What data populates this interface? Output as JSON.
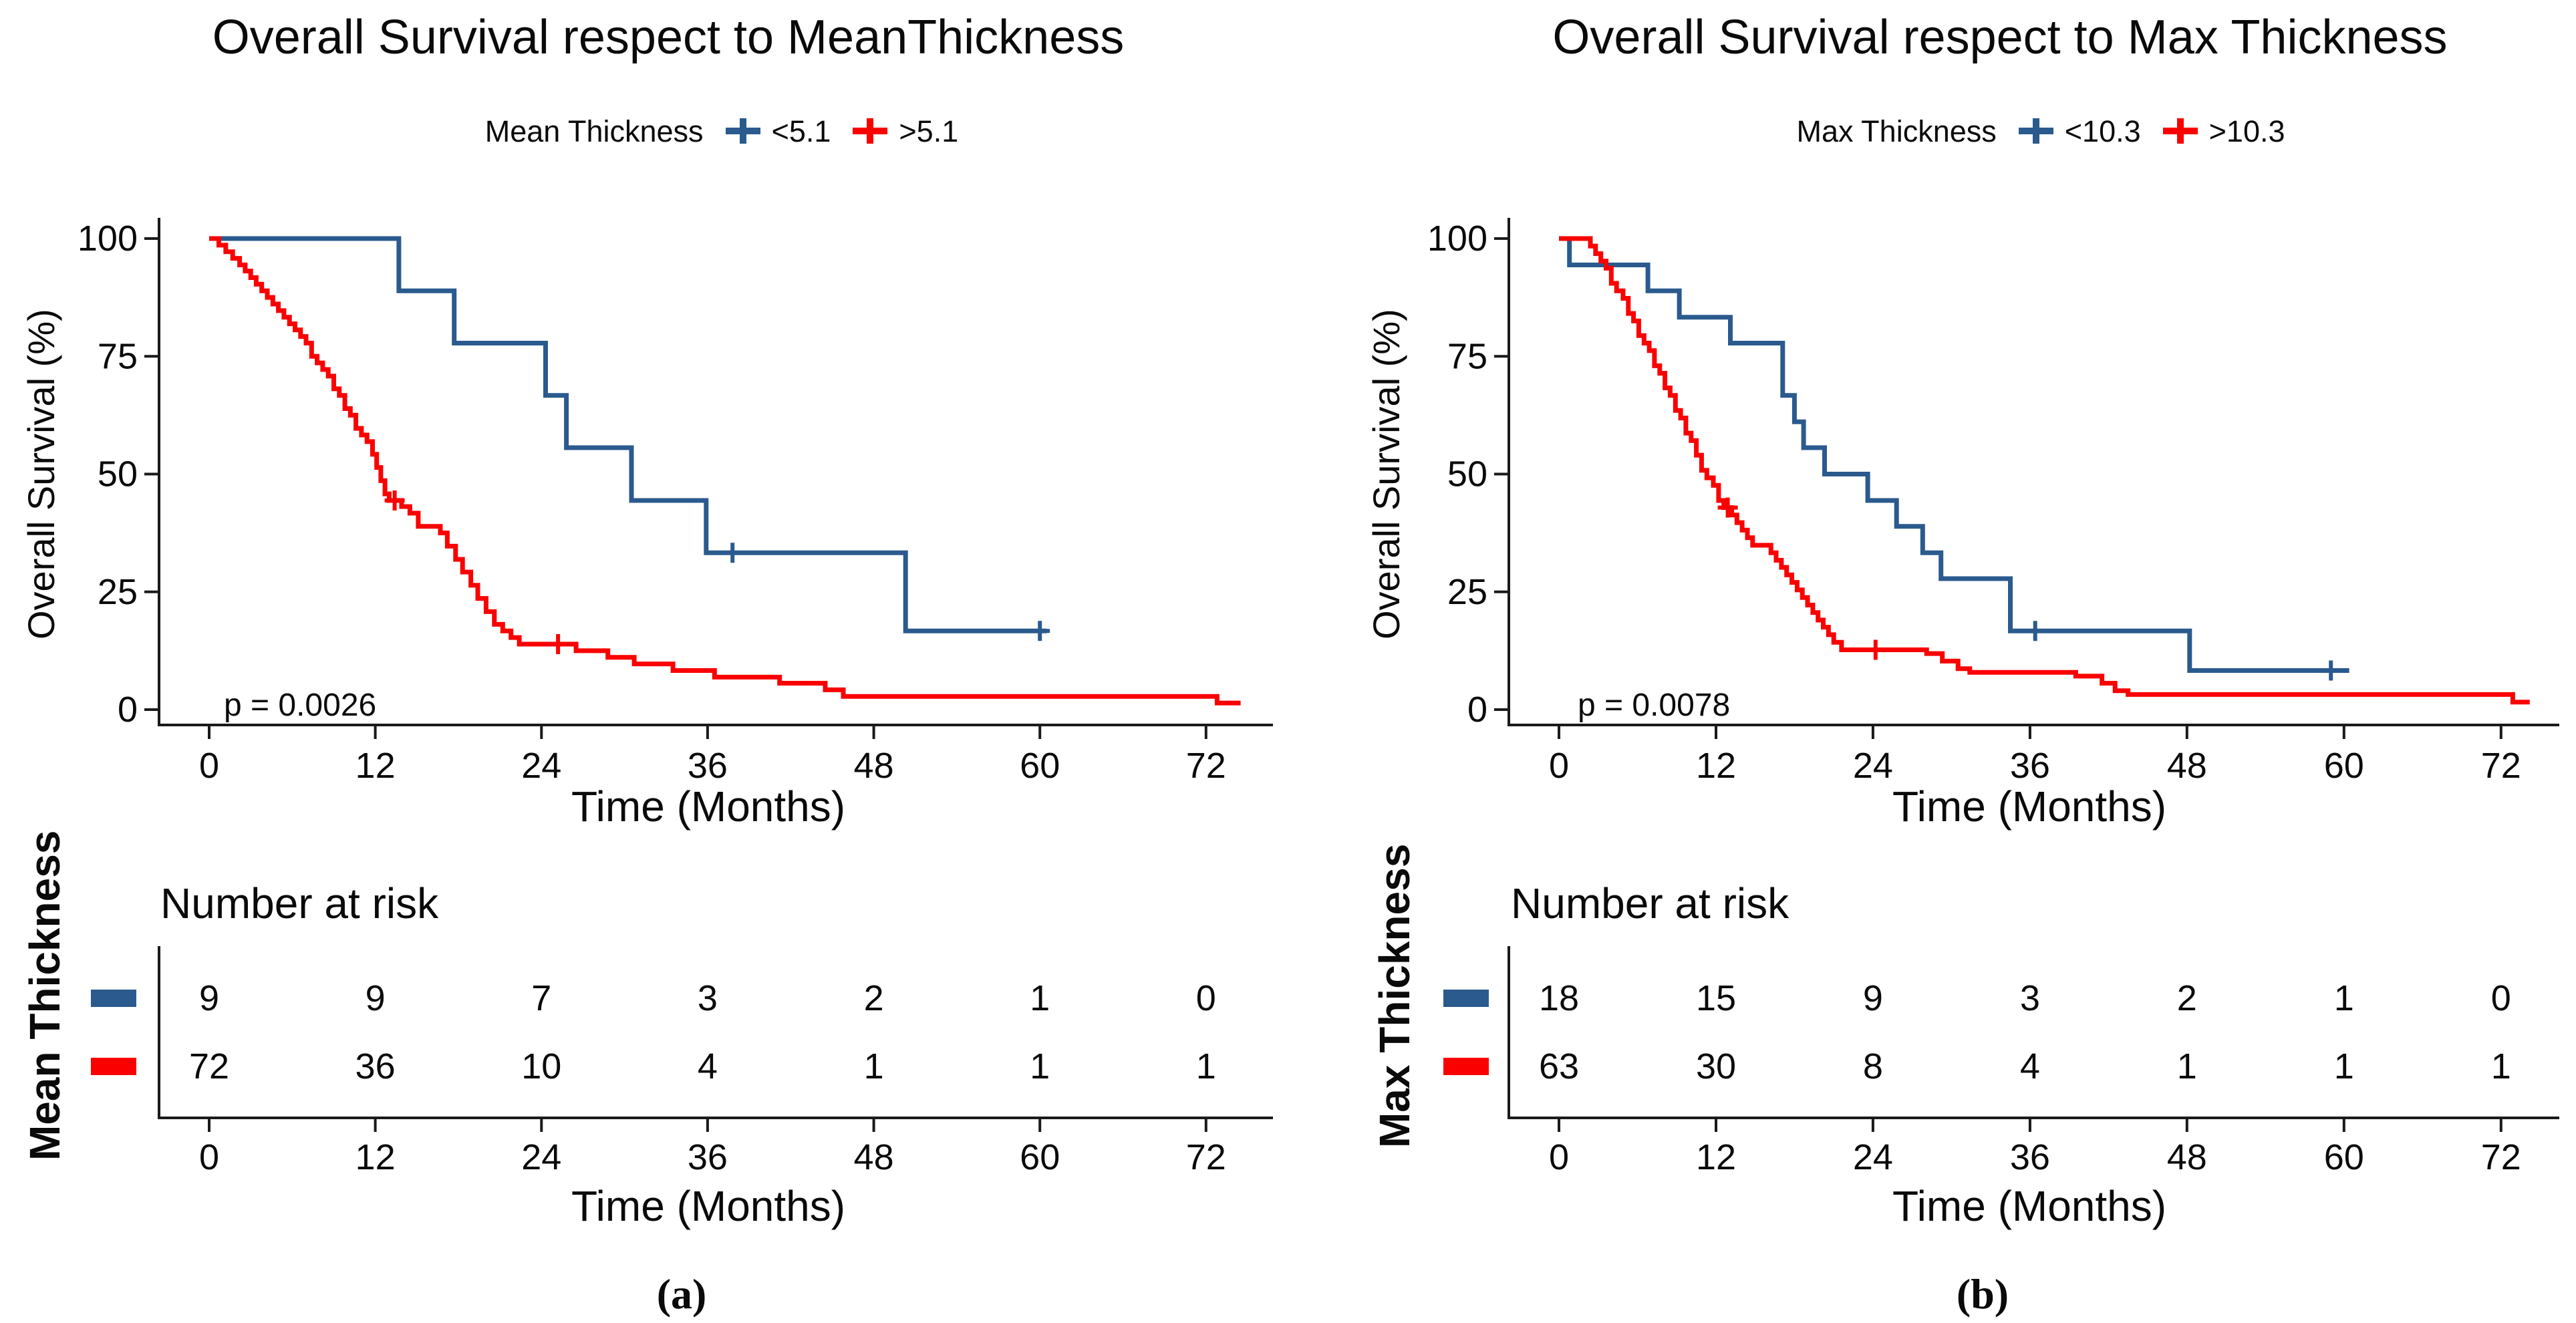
{
  "chart_data": [
    {
      "type": "line",
      "subtype": "kaplan_meier_step",
      "panel": "a",
      "title": "Overall Survival respect to MeanThickness",
      "xlabel": "Time (Months)",
      "ylabel": "Overall Survival (%)",
      "pvalue": "p = 0.0026",
      "caption": "(a)",
      "xticks": [
        0,
        12,
        24,
        36,
        48,
        60,
        72
      ],
      "yticks": [
        100,
        75,
        50,
        25,
        0
      ],
      "xlim": [
        0,
        76
      ],
      "ylim": [
        0,
        100
      ],
      "grid": false,
      "legend": {
        "position": "top",
        "label": "Mean Thickness",
        "items": [
          {
            "name": "<5.1",
            "color": "#2A5A8E"
          },
          {
            "name": ">5.1",
            "color": "#FB0000"
          }
        ]
      },
      "series": [
        {
          "name": "<5.1",
          "color": "#2A5A8E",
          "steps": [
            [
              0,
              100
            ],
            [
              13.7,
              88.9
            ],
            [
              17.7,
              77.8
            ],
            [
              24.3,
              66.7
            ],
            [
              25.8,
              55.6
            ],
            [
              30.5,
              44.4
            ],
            [
              35.9,
              33.3
            ],
            [
              50.3,
              16.7
            ]
          ],
          "censors": [
            [
              37.8,
              33.3
            ],
            [
              60,
              16.7
            ]
          ],
          "end": 60.5
        },
        {
          "name": ">5.1",
          "color": "#FB0000",
          "steps": [
            [
              0,
              100
            ],
            [
              0.7,
              98.6
            ],
            [
              1.2,
              97.2
            ],
            [
              1.7,
              95.8
            ],
            [
              2.2,
              94.4
            ],
            [
              2.6,
              93.1
            ],
            [
              3,
              91.7
            ],
            [
              3.4,
              90.3
            ],
            [
              3.8,
              88.9
            ],
            [
              4.2,
              87.5
            ],
            [
              4.6,
              86.1
            ],
            [
              5,
              84.7
            ],
            [
              5.4,
              83.3
            ],
            [
              5.8,
              81.9
            ],
            [
              6.2,
              80.6
            ],
            [
              6.6,
              79.2
            ],
            [
              7,
              77.8
            ],
            [
              7.4,
              75
            ],
            [
              7.8,
              73.6
            ],
            [
              8.2,
              72.2
            ],
            [
              8.6,
              70.8
            ],
            [
              9,
              68.1
            ],
            [
              9.4,
              66.7
            ],
            [
              9.8,
              63.9
            ],
            [
              10.2,
              62.5
            ],
            [
              10.6,
              59.7
            ],
            [
              11,
              58.3
            ],
            [
              11.4,
              56.9
            ],
            [
              11.8,
              54.2
            ],
            [
              12.1,
              51.4
            ],
            [
              12.4,
              48.6
            ],
            [
              12.7,
              45.8
            ],
            [
              13,
              44.4
            ],
            [
              13.9,
              43.1
            ],
            [
              14.5,
              41.7
            ],
            [
              15.1,
              38.9
            ],
            [
              16.7,
              37.5
            ],
            [
              17.2,
              34.7
            ],
            [
              17.8,
              31.9
            ],
            [
              18.3,
              29.2
            ],
            [
              18.9,
              26.4
            ],
            [
              19.4,
              23.6
            ],
            [
              20,
              20.8
            ],
            [
              20.6,
              18.1
            ],
            [
              21.2,
              16.7
            ],
            [
              21.8,
              15.3
            ],
            [
              22.4,
              13.9
            ],
            [
              26.5,
              12.5
            ],
            [
              28.8,
              11.1
            ],
            [
              30.7,
              9.7
            ],
            [
              33.5,
              8.3
            ],
            [
              36.5,
              6.9
            ],
            [
              41.2,
              5.6
            ],
            [
              44.5,
              4.2
            ],
            [
              45.8,
              2.8
            ],
            [
              72.8,
              1.4
            ]
          ],
          "censors": [
            [
              13.4,
              44.4
            ],
            [
              25.2,
              13.9
            ]
          ],
          "end": 74.5
        }
      ],
      "risk_table": {
        "title": "Number at risk",
        "group_label": "Mean Thickness",
        "xlabel": "Time (Months)",
        "times": [
          0,
          12,
          24,
          36,
          48,
          60,
          72
        ],
        "rows": [
          {
            "name": "<5.1",
            "color": "#2A5A8E",
            "counts": [
              9,
              9,
              7,
              3,
              2,
              1,
              0
            ]
          },
          {
            "name": ">5.1",
            "color": "#FB0000",
            "counts": [
              72,
              36,
              10,
              4,
              1,
              1,
              1
            ]
          }
        ]
      }
    },
    {
      "type": "line",
      "subtype": "kaplan_meier_step",
      "panel": "b",
      "title": "Overall Survival respect to Max Thickness",
      "xlabel": "Time (Months)",
      "ylabel": "Overall Survival (%)",
      "pvalue": "p = 0.0078",
      "caption": "(b)",
      "xticks": [
        0,
        12,
        24,
        36,
        48,
        60,
        72
      ],
      "yticks": [
        100,
        75,
        50,
        25,
        0
      ],
      "xlim": [
        0,
        76
      ],
      "ylim": [
        0,
        100
      ],
      "grid": false,
      "legend": {
        "position": "top",
        "label": "Max Thickness",
        "items": [
          {
            "name": "<10.3",
            "color": "#2A5A8E"
          },
          {
            "name": ">10.3",
            "color": "#FB0000"
          }
        ]
      },
      "series": [
        {
          "name": "<10.3",
          "color": "#2A5A8E",
          "steps": [
            [
              0,
              100
            ],
            [
              0.8,
              94.4
            ],
            [
              6.8,
              88.9
            ],
            [
              9.2,
              83.3
            ],
            [
              13.1,
              77.8
            ],
            [
              17.1,
              66.7
            ],
            [
              18,
              61.1
            ],
            [
              18.7,
              55.6
            ],
            [
              20.3,
              50
            ],
            [
              23.6,
              44.4
            ],
            [
              25.8,
              38.9
            ],
            [
              27.8,
              33.3
            ],
            [
              29.2,
              27.8
            ],
            [
              34.5,
              16.7
            ],
            [
              48.2,
              8.3
            ]
          ],
          "censors": [
            [
              36.4,
              16.7
            ],
            [
              59,
              8.3
            ]
          ],
          "end": 60.4
        },
        {
          "name": ">10.3",
          "color": "#FB0000",
          "steps": [
            [
              0,
              100
            ],
            [
              2.4,
              98.4
            ],
            [
              2.8,
              96.8
            ],
            [
              3.2,
              95.2
            ],
            [
              3.6,
              93.7
            ],
            [
              4,
              90.5
            ],
            [
              4.4,
              88.9
            ],
            [
              4.9,
              87.3
            ],
            [
              5.3,
              84.1
            ],
            [
              5.7,
              82.5
            ],
            [
              6.1,
              79.4
            ],
            [
              6.5,
              77.8
            ],
            [
              6.9,
              76.2
            ],
            [
              7.3,
              73
            ],
            [
              7.7,
              71.4
            ],
            [
              8.1,
              68.3
            ],
            [
              8.5,
              66.7
            ],
            [
              8.9,
              63.5
            ],
            [
              9.3,
              61.9
            ],
            [
              9.7,
              58.7
            ],
            [
              10.1,
              57.1
            ],
            [
              10.5,
              54
            ],
            [
              10.9,
              50.8
            ],
            [
              11.3,
              49.2
            ],
            [
              11.8,
              47.6
            ],
            [
              12.2,
              44.4
            ],
            [
              12.6,
              42.9
            ],
            [
              13.2,
              41.3
            ],
            [
              13.6,
              39.7
            ],
            [
              14,
              38.1
            ],
            [
              14.4,
              36.5
            ],
            [
              14.8,
              34.9
            ],
            [
              16.2,
              33.3
            ],
            [
              16.6,
              31.7
            ],
            [
              17,
              30.2
            ],
            [
              17.4,
              28.6
            ],
            [
              17.8,
              27
            ],
            [
              18.2,
              25.4
            ],
            [
              18.6,
              23.8
            ],
            [
              19,
              22.2
            ],
            [
              19.4,
              20.6
            ],
            [
              19.8,
              19
            ],
            [
              20.2,
              17.5
            ],
            [
              20.6,
              15.9
            ],
            [
              21,
              14.3
            ],
            [
              21.6,
              12.7
            ],
            [
              28.1,
              11.9
            ],
            [
              29.3,
              10.3
            ],
            [
              30.5,
              8.7
            ],
            [
              31.4,
              7.9
            ],
            [
              39.5,
              7.1
            ],
            [
              41.5,
              5.6
            ],
            [
              42.5,
              4
            ],
            [
              43.5,
              3.2
            ],
            [
              72.9,
              1.6
            ]
          ],
          "censors": [
            [
              12.9,
              42.9
            ],
            [
              24.2,
              12.7
            ]
          ],
          "end": 74.2
        }
      ],
      "risk_table": {
        "title": "Number at risk",
        "group_label": "Max Thickness",
        "xlabel": "Time (Months)",
        "times": [
          0,
          12,
          24,
          36,
          48,
          60,
          72
        ],
        "rows": [
          {
            "name": "<10.3",
            "color": "#2A5A8E",
            "counts": [
              18,
              15,
              9,
              3,
              2,
              1,
              0
            ]
          },
          {
            "name": ">10.3",
            "color": "#FB0000",
            "counts": [
              63,
              30,
              8,
              4,
              1,
              1,
              1
            ]
          }
        ]
      }
    }
  ]
}
